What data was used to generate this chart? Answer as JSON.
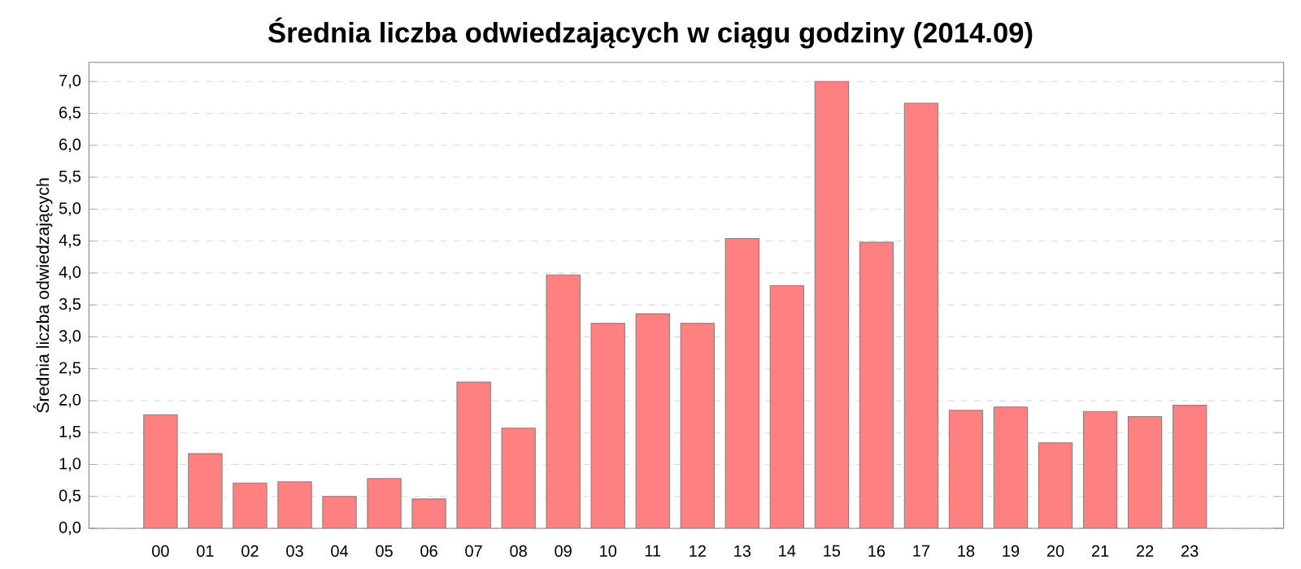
{
  "chart_data": {
    "type": "bar",
    "title": "**Średnia liczba odwiedzających w ciągu godziny (2014.09)**",
    "ylabel": "Średnia liczba odwiedzających",
    "categories": [
      "00",
      "01",
      "02",
      "03",
      "04",
      "05",
      "06",
      "07",
      "08",
      "09",
      "10",
      "11",
      "12",
      "13",
      "14",
      "15",
      "16",
      "17",
      "18",
      "19",
      "20",
      "21",
      "22",
      "23"
    ],
    "values": [
      1.78,
      1.17,
      0.71,
      0.73,
      0.5,
      0.78,
      0.46,
      2.29,
      1.57,
      3.97,
      3.21,
      3.36,
      3.21,
      4.54,
      3.8,
      7.0,
      4.48,
      6.66,
      1.85,
      1.9,
      1.34,
      1.83,
      1.75,
      1.93
    ],
    "color": "#ff8080",
    "ylim": [
      0,
      7.3
    ],
    "yticks": [
      {
        "value": 0,
        "label": "0,0"
      },
      {
        "value": 0.5,
        "label": "0,5"
      },
      {
        "value": 1,
        "label": "1,0"
      },
      {
        "value": 1.5,
        "label": "1,5"
      },
      {
        "value": 2,
        "label": "2,0"
      },
      {
        "value": 2.5,
        "label": "2,5"
      },
      {
        "value": 3,
        "label": "3,0"
      },
      {
        "value": 3.5,
        "label": "3,5"
      },
      {
        "value": 4,
        "label": "4,0"
      },
      {
        "value": 4.5,
        "label": "4,5"
      },
      {
        "value": 5,
        "label": "5,0"
      },
      {
        "value": 5.5,
        "label": "5,5"
      },
      {
        "value": 6,
        "label": "6,0"
      },
      {
        "value": 6.5,
        "label": "6,5"
      },
      {
        "value": 7,
        "label": "7,0"
      }
    ],
    "grid": "y"
  }
}
